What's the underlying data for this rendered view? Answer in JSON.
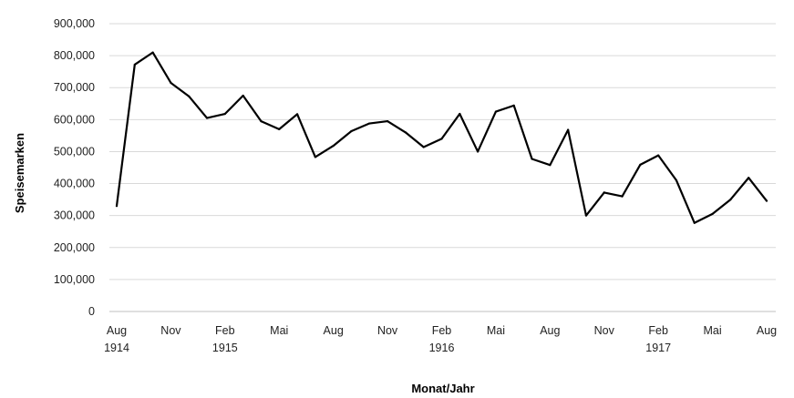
{
  "chart_data": {
    "type": "line",
    "xlabel": "Monat/Jahr",
    "ylabel": "Speisemarken",
    "ylim": [
      0,
      900000
    ],
    "yticks": [
      "0",
      "100,000",
      "200,000",
      "300,000",
      "400,000",
      "500,000",
      "600,000",
      "700,000",
      "800,000",
      "900,000"
    ],
    "xtick_labels": [
      {
        "month_index": 0,
        "line1": "Aug",
        "line2": "1914"
      },
      {
        "month_index": 3,
        "line1": "Nov",
        "line2": ""
      },
      {
        "month_index": 6,
        "line1": "Feb",
        "line2": "1915"
      },
      {
        "month_index": 9,
        "line1": "Mai",
        "line2": ""
      },
      {
        "month_index": 12,
        "line1": "Aug",
        "line2": ""
      },
      {
        "month_index": 15,
        "line1": "Nov",
        "line2": ""
      },
      {
        "month_index": 18,
        "line1": "Feb",
        "line2": "1916"
      },
      {
        "month_index": 21,
        "line1": "Mai",
        "line2": ""
      },
      {
        "month_index": 24,
        "line1": "Aug",
        "line2": ""
      },
      {
        "month_index": 27,
        "line1": "Nov",
        "line2": ""
      },
      {
        "month_index": 30,
        "line1": "Feb",
        "line2": "1917"
      },
      {
        "month_index": 33,
        "line1": "Mai",
        "line2": ""
      },
      {
        "month_index": 36,
        "line1": "Aug",
        "line2": ""
      }
    ],
    "x": [
      "1914-08",
      "1914-09",
      "1914-10",
      "1914-11",
      "1914-12",
      "1915-01",
      "1915-02",
      "1915-03",
      "1915-04",
      "1915-05",
      "1915-06",
      "1915-07",
      "1915-08",
      "1915-09",
      "1915-10",
      "1915-11",
      "1915-12",
      "1916-01",
      "1916-02",
      "1916-03",
      "1916-04",
      "1916-05",
      "1916-06",
      "1916-07",
      "1916-08",
      "1916-09",
      "1916-10",
      "1916-11",
      "1916-12",
      "1917-01",
      "1917-02",
      "1917-03",
      "1917-04",
      "1917-05",
      "1917-06",
      "1917-07",
      "1917-08"
    ],
    "series": [
      {
        "values": [
          330000,
          772000,
          810000,
          715000,
          673000,
          605000,
          618000,
          675000,
          595000,
          570000,
          617000,
          483000,
          518000,
          564000,
          588000,
          595000,
          560000,
          514000,
          540000,
          618000,
          500000,
          625000,
          644000,
          477000,
          458000,
          568000,
          300000,
          372000,
          360000,
          459000,
          488000,
          410000,
          277000,
          305000,
          350000,
          418000,
          346000
        ]
      }
    ],
    "grid": true,
    "colors": {
      "line": "#000000",
      "grid": "#d9d9d9",
      "axis": "#bfbfbf"
    }
  }
}
